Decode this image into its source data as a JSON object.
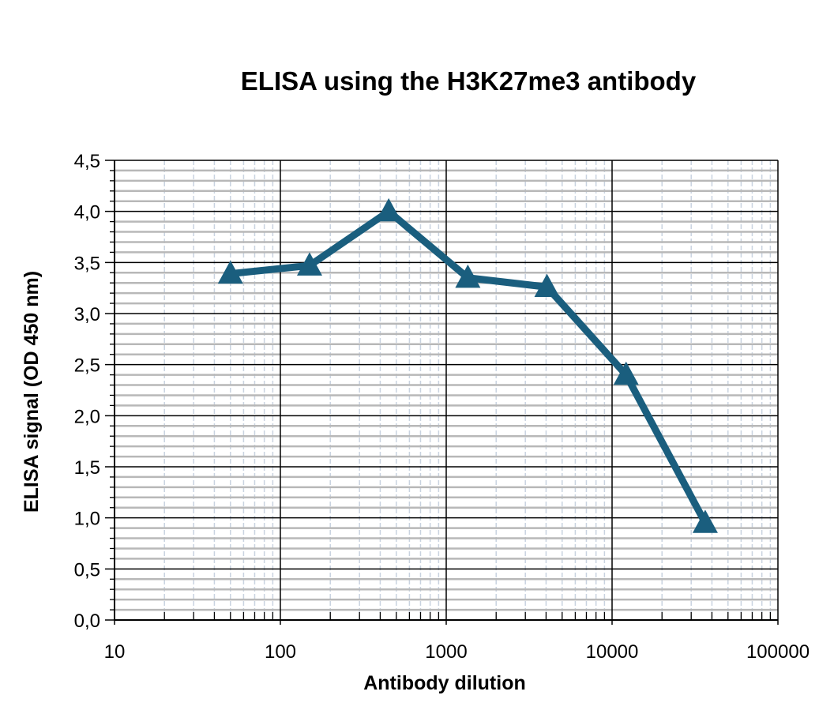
{
  "chart_data": {
    "type": "line",
    "title": "ELISA using the H3K27me3 antibody",
    "xlabel": "Antibody dilution",
    "ylabel": "ELISA signal (OD 450 nm)",
    "x_scale": "log",
    "xlim": [
      10,
      100000
    ],
    "ylim": [
      0,
      4.5
    ],
    "x_ticks": [
      "10",
      "100",
      "1000",
      "10000",
      "100000"
    ],
    "y_ticks": [
      "0,0",
      "0,5",
      "1,0",
      "1,5",
      "2,0",
      "2,5",
      "3,0",
      "3,5",
      "4,0",
      "4,5"
    ],
    "grid": true,
    "legend": null,
    "series": [
      {
        "name": "H3K27me3",
        "color": "#1a5e7e",
        "marker": "triangle",
        "x": [
          50,
          150,
          450,
          1350,
          4050,
          12150,
          36450
        ],
        "values": [
          3.39,
          3.47,
          4.0,
          3.35,
          3.26,
          2.4,
          0.95
        ]
      }
    ]
  }
}
